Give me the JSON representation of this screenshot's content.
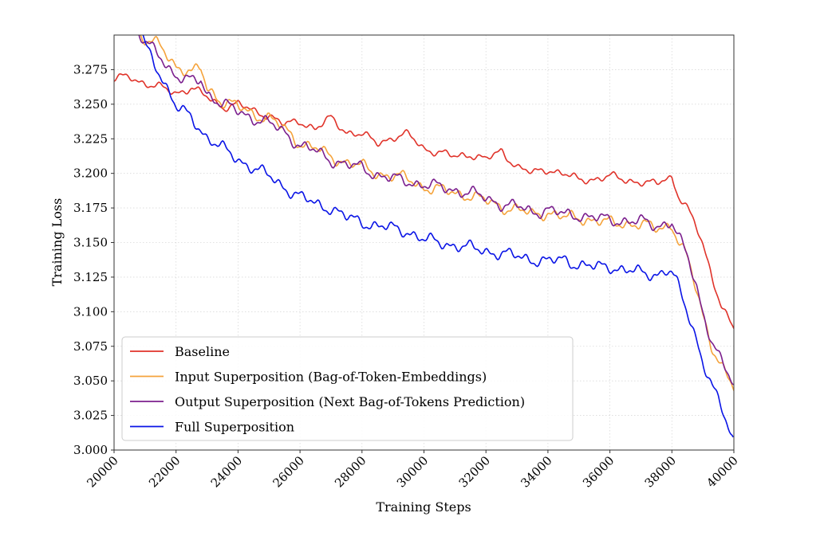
{
  "chart_data": {
    "type": "line",
    "title": "",
    "xlabel": "Training Steps",
    "ylabel": "Training Loss",
    "xlim": [
      20000,
      40000
    ],
    "ylim": [
      3.0,
      3.3
    ],
    "xticks": [
      20000,
      22000,
      24000,
      26000,
      28000,
      30000,
      32000,
      34000,
      36000,
      38000,
      40000
    ],
    "xtick_labels": [
      "20000",
      "22000",
      "24000",
      "26000",
      "28000",
      "30000",
      "32000",
      "34000",
      "36000",
      "38000",
      "40000"
    ],
    "yticks": [
      3.0,
      3.025,
      3.05,
      3.075,
      3.1,
      3.125,
      3.15,
      3.175,
      3.2,
      3.225,
      3.25,
      3.275
    ],
    "ytick_labels": [
      "3.000",
      "3.025",
      "3.050",
      "3.075",
      "3.100",
      "3.125",
      "3.150",
      "3.175",
      "3.200",
      "3.225",
      "3.250",
      "3.275"
    ],
    "grid": true,
    "legend_position": "lower-left",
    "series": [
      {
        "name": "Baseline",
        "color": "#e0332a",
        "x": [
          20000,
          20500,
          21000,
          21500,
          22000,
          22500,
          23000,
          23500,
          24000,
          24500,
          25000,
          25500,
          26000,
          26500,
          27000,
          27500,
          28000,
          28500,
          29000,
          29500,
          30000,
          30500,
          31000,
          31500,
          32000,
          32500,
          33000,
          33500,
          34000,
          34500,
          35000,
          35500,
          36000,
          36500,
          37000,
          37500,
          37800,
          38000,
          38200,
          38500,
          38800,
          39000,
          39300,
          39600,
          40000
        ],
        "y": [
          3.268,
          3.27,
          3.265,
          3.262,
          3.258,
          3.262,
          3.255,
          3.248,
          3.25,
          3.245,
          3.242,
          3.235,
          3.238,
          3.232,
          3.24,
          3.23,
          3.228,
          3.222,
          3.226,
          3.228,
          3.218,
          3.215,
          3.212,
          3.214,
          3.21,
          3.216,
          3.205,
          3.2,
          3.203,
          3.2,
          3.195,
          3.196,
          3.198,
          3.195,
          3.194,
          3.192,
          3.196,
          3.197,
          3.185,
          3.175,
          3.16,
          3.148,
          3.125,
          3.105,
          3.087
        ]
      },
      {
        "name": "Input Superposition (Bag-of-Token-Embeddings)",
        "color": "#f5a33b",
        "x": [
          20800,
          21000,
          21500,
          22000,
          22500,
          22800,
          23000,
          23500,
          24000,
          24500,
          25000,
          25500,
          26000,
          26500,
          27000,
          27500,
          28000,
          28500,
          29000,
          29500,
          30000,
          30500,
          31000,
          31500,
          32000,
          32500,
          33000,
          33500,
          34000,
          34500,
          35000,
          35500,
          36000,
          36500,
          37000,
          37500,
          37800,
          38000,
          38200,
          38500,
          38800,
          39000,
          39300,
          39600,
          40000
        ],
        "y": [
          3.3,
          3.296,
          3.292,
          3.278,
          3.272,
          3.276,
          3.262,
          3.252,
          3.248,
          3.243,
          3.24,
          3.232,
          3.222,
          3.218,
          3.212,
          3.208,
          3.205,
          3.2,
          3.198,
          3.196,
          3.19,
          3.188,
          3.186,
          3.184,
          3.18,
          3.176,
          3.174,
          3.17,
          3.172,
          3.168,
          3.168,
          3.166,
          3.164,
          3.164,
          3.163,
          3.16,
          3.162,
          3.163,
          3.152,
          3.138,
          3.115,
          3.098,
          3.075,
          3.06,
          3.044
        ]
      },
      {
        "name": "Output Superposition (Next Bag-of-Tokens Prediction)",
        "color": "#7b1f8e",
        "x": [
          20800,
          21000,
          21500,
          22000,
          22500,
          22800,
          23000,
          23500,
          24000,
          24500,
          25000,
          25500,
          26000,
          26500,
          27000,
          27500,
          28000,
          28500,
          29000,
          29500,
          30000,
          30500,
          31000,
          31500,
          32000,
          32500,
          33000,
          33500,
          34000,
          34500,
          35000,
          35500,
          36000,
          36500,
          37000,
          37500,
          37800,
          38000,
          38200,
          38500,
          38800,
          39000,
          39300,
          39600,
          40000
        ],
        "y": [
          3.3,
          3.294,
          3.285,
          3.27,
          3.266,
          3.268,
          3.258,
          3.25,
          3.245,
          3.24,
          3.236,
          3.23,
          3.22,
          3.216,
          3.21,
          3.206,
          3.204,
          3.199,
          3.196,
          3.194,
          3.192,
          3.19,
          3.188,
          3.186,
          3.182,
          3.178,
          3.176,
          3.172,
          3.174,
          3.17,
          3.17,
          3.168,
          3.166,
          3.166,
          3.165,
          3.162,
          3.164,
          3.165,
          3.154,
          3.14,
          3.118,
          3.1,
          3.078,
          3.063,
          3.047
        ]
      },
      {
        "name": "Full Superposition",
        "color": "#0a14e6",
        "x": [
          20900,
          21000,
          21500,
          22000,
          22500,
          23000,
          23500,
          24000,
          24500,
          25000,
          25500,
          26000,
          26500,
          27000,
          27500,
          28000,
          28500,
          29000,
          29500,
          30000,
          30500,
          31000,
          31500,
          32000,
          32500,
          33000,
          33500,
          34000,
          34500,
          35000,
          35500,
          36000,
          36500,
          37000,
          37500,
          37800,
          38000,
          38200,
          38500,
          38800,
          39000,
          39300,
          39600,
          39800,
          40000
        ],
        "y": [
          3.3,
          3.292,
          3.272,
          3.248,
          3.24,
          3.226,
          3.218,
          3.21,
          3.204,
          3.198,
          3.19,
          3.183,
          3.178,
          3.175,
          3.168,
          3.165,
          3.162,
          3.16,
          3.158,
          3.152,
          3.15,
          3.148,
          3.146,
          3.144,
          3.142,
          3.14,
          3.138,
          3.136,
          3.138,
          3.134,
          3.132,
          3.133,
          3.13,
          3.128,
          3.127,
          3.13,
          3.128,
          3.118,
          3.1,
          3.08,
          3.064,
          3.045,
          3.03,
          3.018,
          3.006
        ]
      }
    ]
  }
}
